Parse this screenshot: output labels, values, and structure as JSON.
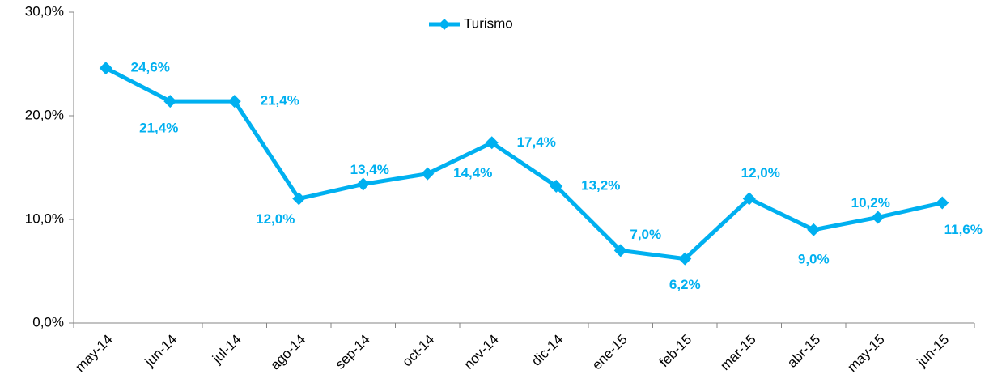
{
  "chart_data": {
    "type": "line",
    "categories": [
      "may-14",
      "jun-14",
      "jul-14",
      "ago-14",
      "sep-14",
      "oct-14",
      "nov-14",
      "dic-14",
      "ene-15",
      "feb-15",
      "mar-15",
      "abr-15",
      "may-15",
      "jun-15"
    ],
    "series": [
      {
        "name": "Turismo",
        "color": "#00b0f0",
        "values": [
          24.6,
          21.4,
          21.4,
          12.0,
          13.4,
          14.4,
          17.4,
          13.2,
          7.0,
          6.2,
          12.0,
          9.0,
          10.2,
          11.6
        ],
        "value_labels": [
          "24,6%",
          "21,4%",
          "21,4%",
          "12,0%",
          "13,4%",
          "14,4%",
          "17,4%",
          "13,2%",
          "7,0%",
          "6,2%",
          "12,0%",
          "9,0%",
          "10,2%",
          "11,6%"
        ]
      }
    ],
    "ylim": [
      0,
      30
    ],
    "yticks": [
      {
        "value": 0,
        "label": "0,0%"
      },
      {
        "value": 10,
        "label": "10,0%"
      },
      {
        "value": 20,
        "label": "20,0%"
      },
      {
        "value": 30,
        "label": "30,0%"
      }
    ],
    "grid": false,
    "legend": "top"
  }
}
